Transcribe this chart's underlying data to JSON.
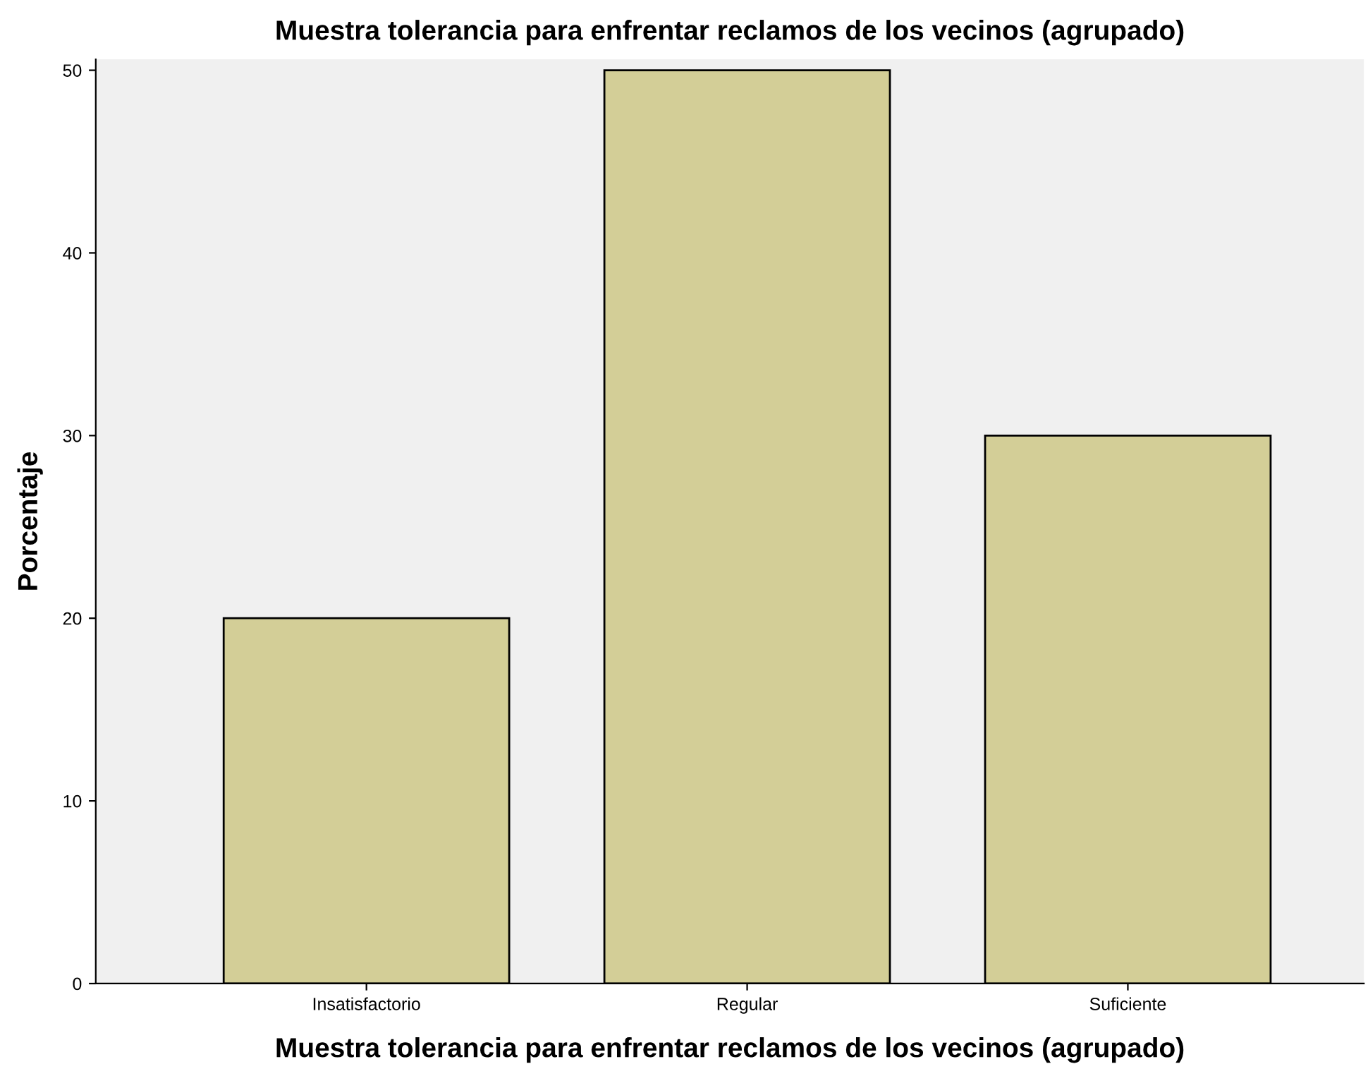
{
  "chart_data": {
    "type": "bar",
    "title": "Muestra tolerancia para enfrentar reclamos de los vecinos (agrupado)",
    "xlabel": "Muestra tolerancia para enfrentar reclamos de los vecinos (agrupado)",
    "ylabel": "Porcentaje",
    "categories": [
      "Insatisfactorio",
      "Regular",
      "Suficiente"
    ],
    "values": [
      20,
      50,
      30
    ],
    "color": "#d3ce97",
    "ylim": [
      0,
      50.6
    ],
    "yticks": [
      0,
      10,
      20,
      30,
      40,
      50
    ],
    "grid": false,
    "legend": false
  }
}
